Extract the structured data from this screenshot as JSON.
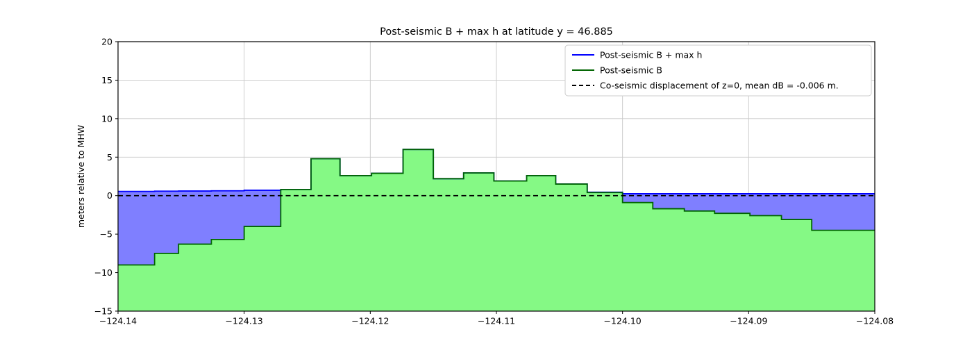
{
  "chart_data": {
    "type": "area",
    "title": "Post-seismic B + max h at latitude y = 46.885",
    "ylabel": "meters relative to MHW",
    "xlabel": "",
    "xlim": [
      -124.14,
      -124.08
    ],
    "ylim": [
      -15,
      20
    ],
    "grid": true,
    "xticks": {
      "values": [
        -124.14,
        -124.13,
        -124.12,
        -124.11,
        -124.1,
        -124.09,
        -124.08
      ],
      "labels": [
        "−124.14",
        "−124.13",
        "−124.12",
        "−124.11",
        "−124.10",
        "−124.09",
        "−124.08"
      ]
    },
    "yticks": {
      "values": [
        20,
        15,
        10,
        5,
        0,
        -5,
        -10,
        -15
      ],
      "labels": [
        "20",
        "15",
        "10",
        "5",
        "0",
        "−5",
        "−10",
        "−15"
      ]
    },
    "legend": {
      "position": "upper-right",
      "entries": [
        {
          "label": "Post-seismic B + max h",
          "color": "#0000ff",
          "dash": ""
        },
        {
          "label": "Post-seismic B",
          "color": "#006400",
          "dash": ""
        },
        {
          "label": "Co-seismic displacement of z=0, mean dB = -0.006 m.",
          "color": "#000000",
          "dash": "6 4"
        }
      ]
    },
    "colors": {
      "green_fill": "#85f985",
      "green_edge": "#006400",
      "blue_fill": "#7f7fff",
      "blue_edge": "#0000ff",
      "dashed_line": "#000000",
      "grid": "#c8c8c8",
      "axes_box": "#000000",
      "legend_border": "#cccccc"
    },
    "series": {
      "co_seismic_z0": -0.006,
      "segments": [
        {
          "x0": -124.14,
          "x1": -124.1371,
          "B": -9.0,
          "B_plus_h": 0.55
        },
        {
          "x0": -124.1371,
          "x1": -124.1352,
          "B": -7.5,
          "B_plus_h": 0.58
        },
        {
          "x0": -124.1352,
          "x1": -124.1326,
          "B": -6.3,
          "B_plus_h": 0.6
        },
        {
          "x0": -124.1326,
          "x1": -124.13,
          "B": -5.7,
          "B_plus_h": 0.63
        },
        {
          "x0": -124.13,
          "x1": -124.1271,
          "B": -4.0,
          "B_plus_h": 0.7
        },
        {
          "x0": -124.1271,
          "x1": -124.1247,
          "B": 0.8,
          "B_plus_h": 0.8
        },
        {
          "x0": -124.1247,
          "x1": -124.1224,
          "B": 4.8,
          "B_plus_h": 4.8
        },
        {
          "x0": -124.1224,
          "x1": -124.1199,
          "B": 2.6,
          "B_plus_h": 2.6
        },
        {
          "x0": -124.1199,
          "x1": -124.1174,
          "B": 2.9,
          "B_plus_h": 2.9
        },
        {
          "x0": -124.1174,
          "x1": -124.115,
          "B": 6.0,
          "B_plus_h": 6.0
        },
        {
          "x0": -124.115,
          "x1": -124.1126,
          "B": 2.2,
          "B_plus_h": 2.2
        },
        {
          "x0": -124.1126,
          "x1": -124.1102,
          "B": 2.95,
          "B_plus_h": 2.95
        },
        {
          "x0": -124.1102,
          "x1": -124.1076,
          "B": 1.9,
          "B_plus_h": 1.9
        },
        {
          "x0": -124.1076,
          "x1": -124.1053,
          "B": 2.6,
          "B_plus_h": 2.6
        },
        {
          "x0": -124.1053,
          "x1": -124.1028,
          "B": 1.5,
          "B_plus_h": 1.5
        },
        {
          "x0": -124.1028,
          "x1": -124.1,
          "B": 0.4,
          "B_plus_h": 0.45
        },
        {
          "x0": -124.1,
          "x1": -124.0976,
          "B": -0.9,
          "B_plus_h": 0.25
        },
        {
          "x0": -124.0976,
          "x1": -124.0951,
          "B": -1.7,
          "B_plus_h": 0.25
        },
        {
          "x0": -124.0951,
          "x1": -124.0927,
          "B": -2.0,
          "B_plus_h": 0.25
        },
        {
          "x0": -124.0927,
          "x1": -124.0899,
          "B": -2.3,
          "B_plus_h": 0.25
        },
        {
          "x0": -124.0899,
          "x1": -124.0874,
          "B": -2.6,
          "B_plus_h": 0.25
        },
        {
          "x0": -124.0874,
          "x1": -124.085,
          "B": -3.1,
          "B_plus_h": 0.25
        },
        {
          "x0": -124.085,
          "x1": -124.08,
          "B": -4.5,
          "B_plus_h": 0.25
        }
      ]
    }
  }
}
